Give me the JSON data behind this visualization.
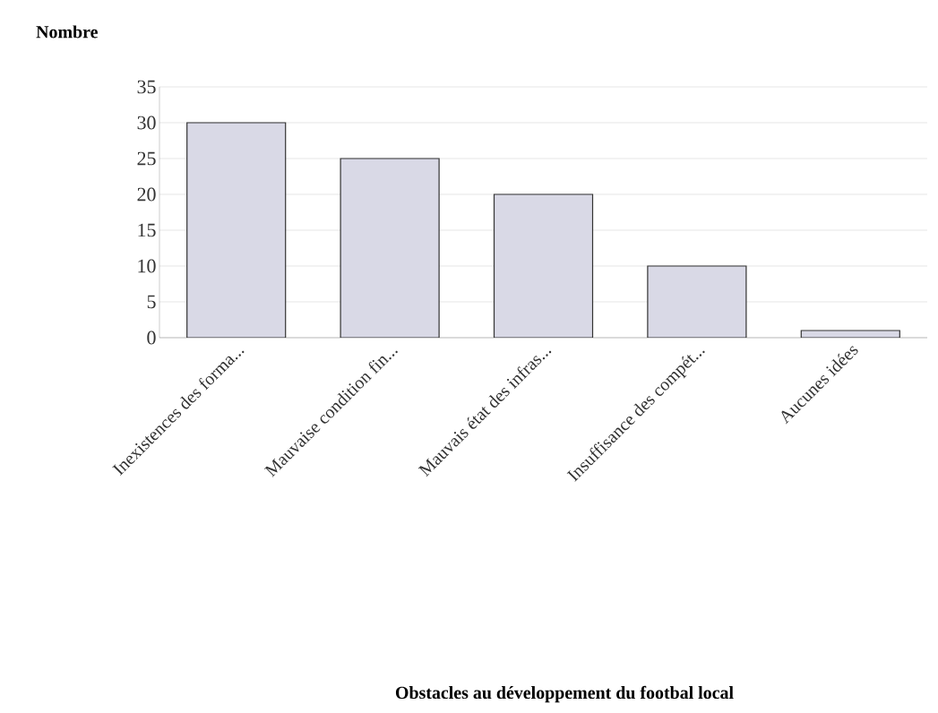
{
  "chart_data": {
    "type": "bar",
    "annotations": [
      "Obstacles au développement du footbal local"
    ],
    "ylabel": "Nombre",
    "categories": [
      "Inexistences des forma...",
      "Mauvaise condition fin...",
      "Mauvais état des infras...",
      "Insuffisance des compét...",
      "Aucunes idées"
    ],
    "values": [
      30,
      25,
      20,
      10,
      1
    ],
    "color": "#d9d9e6",
    "ylim": [
      0,
      35
    ],
    "yticks": [
      0,
      5,
      10,
      15,
      20,
      25,
      30,
      35
    ],
    "grid": "y"
  }
}
